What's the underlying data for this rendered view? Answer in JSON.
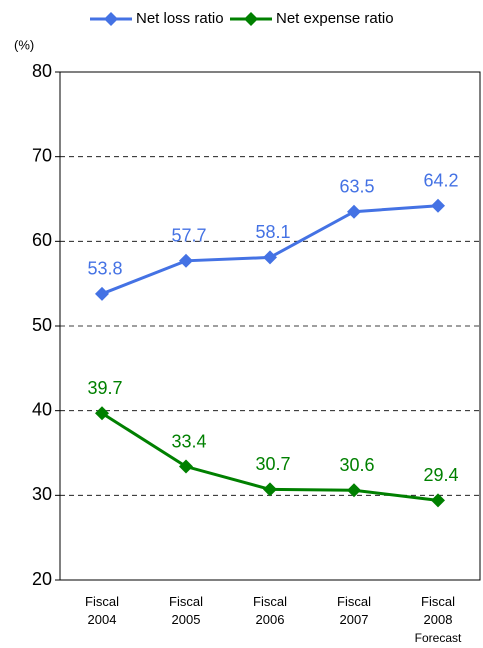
{
  "chart_data": {
    "type": "line",
    "y_unit": "(%)",
    "categories": [
      [
        "Fiscal",
        "2004"
      ],
      [
        "Fiscal",
        "2005"
      ],
      [
        "Fiscal",
        "2006"
      ],
      [
        "Fiscal",
        "2007"
      ],
      [
        "Fiscal",
        "2008",
        "Forecast"
      ]
    ],
    "series": [
      {
        "name": "Net loss ratio",
        "color": "#4472e4",
        "values": [
          53.8,
          57.7,
          58.1,
          63.5,
          64.2
        ]
      },
      {
        "name": "Net expense ratio",
        "color": "#008000",
        "values": [
          39.7,
          33.4,
          30.7,
          30.6,
          29.4
        ]
      }
    ],
    "ylim": [
      20,
      80
    ],
    "yticks": [
      20,
      30,
      40,
      50,
      60,
      70,
      80
    ],
    "grid": true
  }
}
